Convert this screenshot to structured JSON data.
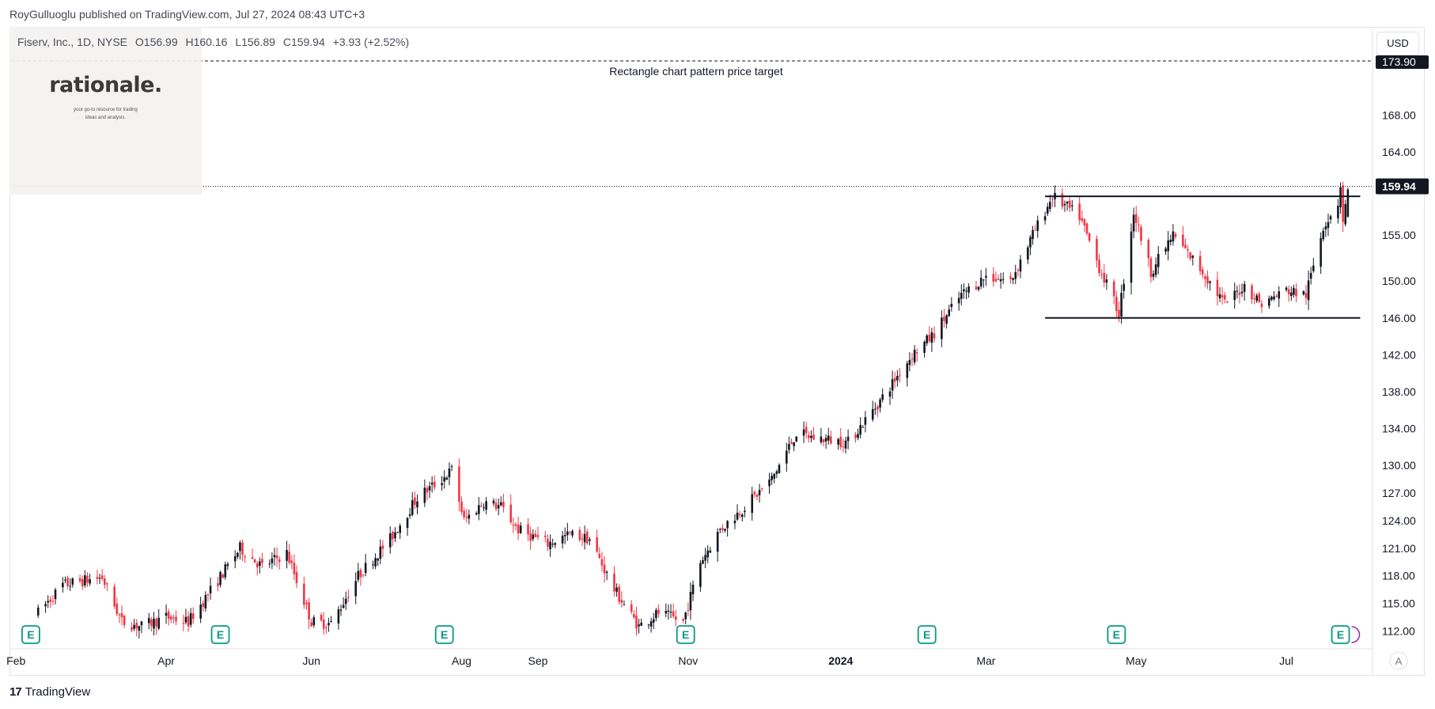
{
  "caption": "RoyGulluoglu published on TradingView.com, Jul 27, 2024 08:43 UTC+3",
  "symbol": {
    "name": "Fiserv, Inc., 1D, NYSE",
    "open": "O156.99",
    "high": "H160.16",
    "low": "L156.89",
    "close": "C159.94",
    "change": "+3.93 (+2.52%)"
  },
  "currency": "USD",
  "logo": {
    "title": "rationale.",
    "tagline_1": "your go-to resource for trading",
    "tagline_2": "ideas and analysis."
  },
  "footer": {
    "brand_mark": "17",
    "brand": "TradingView"
  },
  "auto_scale": "A",
  "colors": {
    "up": "#131722",
    "down": "#f23645",
    "earnings": "#089981",
    "last_price_bg": "#131722"
  },
  "chart_data": {
    "type": "candlestick",
    "y_axis": {
      "ticks": [
        112,
        115,
        118,
        121,
        124,
        127,
        130,
        134,
        138,
        142,
        146,
        150,
        155,
        160,
        164,
        168
      ],
      "tick_labels": [
        "112.00",
        "115.00",
        "118.00",
        "121.00",
        "124.00",
        "127.00",
        "130.00",
        "134.00",
        "138.00",
        "142.00",
        "146.00",
        "150.00",
        "155.00",
        "",
        "164.00",
        "168.00"
      ],
      "range": [
        110.5,
        174.5
      ]
    },
    "x_axis": {
      "ticks": [
        {
          "label": "Feb",
          "date": "2023-02-01",
          "bold": false
        },
        {
          "label": "Apr",
          "date": "2023-04-03",
          "bold": false
        },
        {
          "label": "Jun",
          "date": "2023-06-01",
          "bold": false
        },
        {
          "label": "Aug",
          "date": "2023-08-01",
          "bold": false
        },
        {
          "label": "Sep",
          "date": "2023-09-01",
          "bold": false
        },
        {
          "label": "Nov",
          "date": "2023-11-01",
          "bold": false
        },
        {
          "label": "2024",
          "date": "2024-01-02",
          "bold": true
        },
        {
          "label": "Mar",
          "date": "2024-03-01",
          "bold": false
        },
        {
          "label": "May",
          "date": "2024-05-01",
          "bold": false
        },
        {
          "label": "Jul",
          "date": "2024-07-01",
          "bold": false
        }
      ]
    },
    "anchors": [
      {
        "date": "2023-02-10",
        "price": 114.0
      },
      {
        "date": "2023-02-20",
        "price": 117.0
      },
      {
        "date": "2023-03-01",
        "price": 117.5
      },
      {
        "date": "2023-03-08",
        "price": 117.8
      },
      {
        "date": "2023-03-16",
        "price": 113.0
      },
      {
        "date": "2023-03-24",
        "price": 112.5
      },
      {
        "date": "2023-04-03",
        "price": 113.5
      },
      {
        "date": "2023-04-12",
        "price": 113.0
      },
      {
        "date": "2023-04-24",
        "price": 117.5
      },
      {
        "date": "2023-05-03",
        "price": 121.0
      },
      {
        "date": "2023-05-12",
        "price": 119.0
      },
      {
        "date": "2023-05-22",
        "price": 120.5
      },
      {
        "date": "2023-06-01",
        "price": 113.0
      },
      {
        "date": "2023-06-09",
        "price": 112.8
      },
      {
        "date": "2023-06-20",
        "price": 118.0
      },
      {
        "date": "2023-07-03",
        "price": 122.0
      },
      {
        "date": "2023-07-14",
        "price": 126.5
      },
      {
        "date": "2023-07-24",
        "price": 128.5
      },
      {
        "date": "2023-07-28",
        "price": 129.5
      },
      {
        "date": "2023-08-02",
        "price": 124.0
      },
      {
        "date": "2023-08-10",
        "price": 126.0
      },
      {
        "date": "2023-08-17",
        "price": 125.5
      },
      {
        "date": "2023-08-24",
        "price": 123.0
      },
      {
        "date": "2023-09-05",
        "price": 121.5
      },
      {
        "date": "2023-09-14",
        "price": 122.5
      },
      {
        "date": "2023-09-22",
        "price": 122.0
      },
      {
        "date": "2023-10-02",
        "price": 116.5
      },
      {
        "date": "2023-10-12",
        "price": 112.5
      },
      {
        "date": "2023-10-20",
        "price": 114.0
      },
      {
        "date": "2023-10-30",
        "price": 113.0
      },
      {
        "date": "2023-11-06",
        "price": 119.5
      },
      {
        "date": "2023-11-14",
        "price": 123.0
      },
      {
        "date": "2023-11-24",
        "price": 125.5
      },
      {
        "date": "2023-12-05",
        "price": 128.5
      },
      {
        "date": "2023-12-15",
        "price": 133.5
      },
      {
        "date": "2023-12-22",
        "price": 133.0
      },
      {
        "date": "2024-01-05",
        "price": 132.5
      },
      {
        "date": "2024-01-18",
        "price": 137.0
      },
      {
        "date": "2024-01-31",
        "price": 142.0
      },
      {
        "date": "2024-02-08",
        "price": 144.0
      },
      {
        "date": "2024-02-20",
        "price": 148.5
      },
      {
        "date": "2024-03-01",
        "price": 150.5
      },
      {
        "date": "2024-03-11",
        "price": 150.0
      },
      {
        "date": "2024-03-20",
        "price": 155.0
      },
      {
        "date": "2024-03-28",
        "price": 159.2
      },
      {
        "date": "2024-04-08",
        "price": 157.0
      },
      {
        "date": "2024-04-16",
        "price": 151.5
      },
      {
        "date": "2024-04-24",
        "price": 146.5
      },
      {
        "date": "2024-04-30",
        "price": 157.5
      },
      {
        "date": "2024-05-07",
        "price": 151.0
      },
      {
        "date": "2024-05-16",
        "price": 155.0
      },
      {
        "date": "2024-05-28",
        "price": 151.0
      },
      {
        "date": "2024-06-06",
        "price": 147.5
      },
      {
        "date": "2024-06-14",
        "price": 149.5
      },
      {
        "date": "2024-06-21",
        "price": 147.5
      },
      {
        "date": "2024-07-01",
        "price": 149.0
      },
      {
        "date": "2024-07-09",
        "price": 148.5
      },
      {
        "date": "2024-07-16",
        "price": 156.0
      },
      {
        "date": "2024-07-22",
        "price": 158.5
      },
      {
        "date": "2024-07-23",
        "price": 160.5
      },
      {
        "date": "2024-07-24",
        "price": 156.5
      },
      {
        "date": "2024-07-26",
        "price": 159.94
      }
    ],
    "last_bar": {
      "open": 156.99,
      "high": 160.16,
      "low": 156.89,
      "close": 159.94
    },
    "last_price_label": "159.94",
    "earnings_markers": [
      {
        "label": "E",
        "date": "2023-02-07"
      },
      {
        "label": "E",
        "date": "2023-04-25"
      },
      {
        "label": "E",
        "date": "2023-07-25"
      },
      {
        "label": "E",
        "date": "2023-10-31"
      },
      {
        "label": "E",
        "date": "2024-02-06"
      },
      {
        "label": "E",
        "date": "2024-04-23"
      },
      {
        "label": "E",
        "date": "2024-07-23"
      }
    ],
    "annotations": {
      "target_label": "Rectangle chart pattern price target",
      "target_price": 173.9,
      "target_price_label": "173.90",
      "resistance": {
        "price": 159.2,
        "from": "2024-03-25",
        "to": "2024-07-31"
      },
      "support": {
        "price": 146.0,
        "from": "2024-03-25",
        "to": "2024-07-31"
      }
    }
  }
}
